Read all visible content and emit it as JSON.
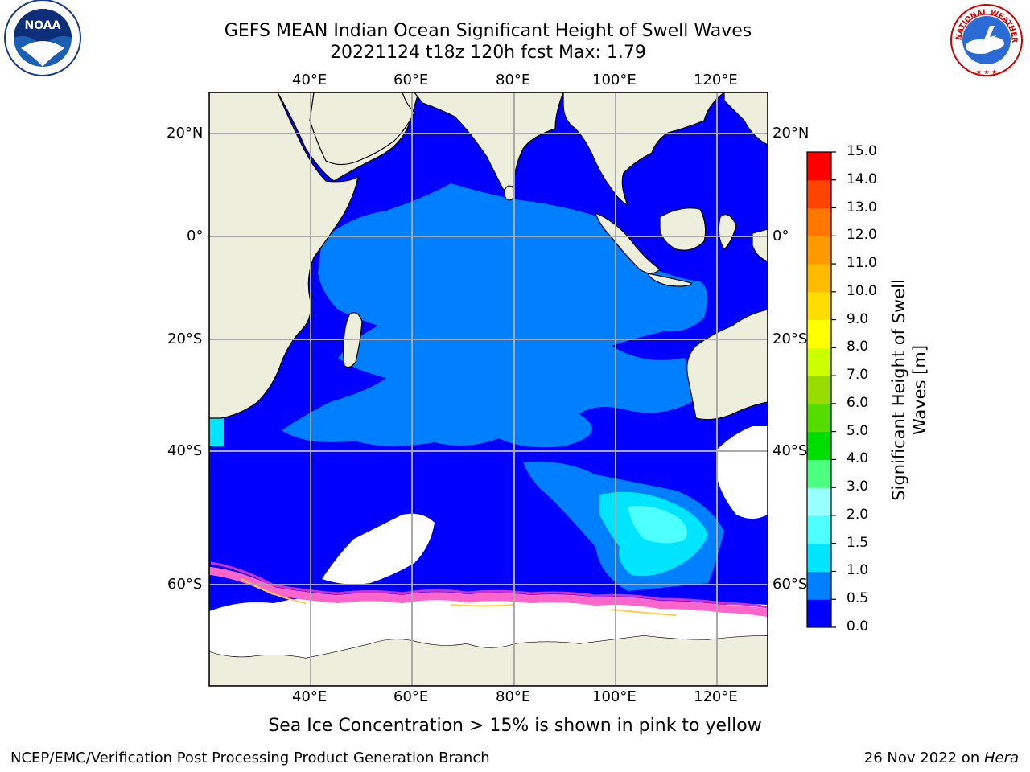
{
  "title": {
    "line1": "GEFS MEAN Indian Ocean Significant Height of Swell Waves",
    "line2": "20221124 t18z 120h fcst   Max: 1.79"
  },
  "map": {
    "lon_labels": [
      "40°E",
      "60°E",
      "80°E",
      "100°E",
      "120°E"
    ],
    "lat_labels": [
      "20°N",
      "0°",
      "20°S",
      "40°S",
      "60°S"
    ],
    "colors": {
      "land": "#eeeedd",
      "sea_ice": "#ffffff",
      "ice_edge": "#ff66cc",
      "grid": "#aaaaaa"
    }
  },
  "colorbar": {
    "label_line1": "Significant Height of Swell",
    "label_line2": "Waves [m]",
    "ticks": [
      "0.0",
      "0.5",
      "1.0",
      "1.5",
      "2.0",
      "3.0",
      "4.0",
      "5.0",
      "6.0",
      "7.0",
      "8.0",
      "9.0",
      "10.0",
      "11.0",
      "12.0",
      "13.0",
      "14.0",
      "15.0"
    ],
    "colors": [
      "#0000ff",
      "#0080ff",
      "#00e5ff",
      "#4dffff",
      "#99ffff",
      "#4dff80",
      "#00dd00",
      "#55dd00",
      "#99dd00",
      "#ccff00",
      "#ffff00",
      "#ffdd00",
      "#ffbb00",
      "#ff9900",
      "#ff7700",
      "#ff4400",
      "#ff0000"
    ]
  },
  "caption": "Sea Ice Concentration > 15% is shown in pink to yellow",
  "footer": {
    "left": "NCEP/EMC/Verification Post Processing Product Generation Branch",
    "right_prefix": "26 Nov 2022 on ",
    "right_host": "Hera"
  },
  "logos": {
    "noaa_text": "NOAA",
    "nws_text": "NATIONAL WEATHER SERVICE"
  }
}
